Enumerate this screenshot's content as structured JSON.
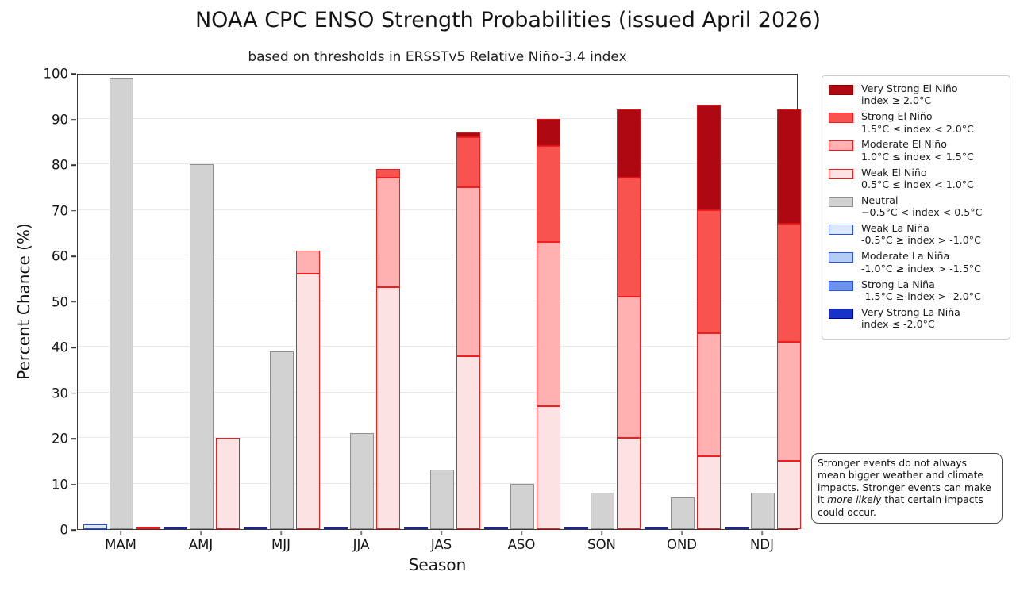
{
  "title": "NOAA CPC ENSO Strength Probabilities (issued April 2026)",
  "subtitle": "based on thresholds in ERSSTv5 Relative Niño-3.4 index",
  "axes": {
    "ylabel": "Percent Chance (%)",
    "xlabel": "Season",
    "yticks": [
      0,
      10,
      20,
      30,
      40,
      50,
      60,
      70,
      80,
      90,
      100
    ]
  },
  "chart_data": {
    "type": "bar",
    "stacked": true,
    "categories": [
      "MAM",
      "AMJ",
      "MJJ",
      "JJA",
      "JAS",
      "ASO",
      "SON",
      "OND",
      "NDJ"
    ],
    "ylim": [
      0,
      100
    ],
    "grid": true,
    "legend_position": "right",
    "groups_per_category": [
      "la_nina",
      "neutral",
      "el_nino"
    ],
    "series": [
      {
        "name": "Very Strong El Niño",
        "group": "el_nino",
        "order": 3,
        "values": [
          0,
          0,
          0,
          0,
          1,
          6,
          15,
          23,
          25
        ],
        "fill": "#ae0912",
        "edge": "#e01414"
      },
      {
        "name": "Strong El Niño",
        "group": "el_nino",
        "order": 2,
        "values": [
          0,
          0,
          0,
          2,
          11,
          21,
          26,
          27,
          26
        ],
        "fill": "#f8534f",
        "edge": "#f01e1e"
      },
      {
        "name": "Moderate El Niño",
        "group": "el_nino",
        "order": 1,
        "values": [
          0,
          0,
          5,
          24,
          37,
          36,
          31,
          27,
          26
        ],
        "fill": "#ffb1b1",
        "edge": "#f01e1e"
      },
      {
        "name": "Weak El Niño",
        "group": "el_nino",
        "order": 0,
        "values": [
          0,
          20,
          56,
          53,
          38,
          27,
          20,
          16,
          15
        ],
        "fill": "#fde2e4",
        "edge": "#f01e1e"
      },
      {
        "name": "Neutral",
        "group": "neutral",
        "order": 0,
        "values": [
          99,
          80,
          39,
          21,
          13,
          10,
          8,
          7,
          8
        ],
        "fill": "#d2d2d2",
        "edge": "#8f8f8f"
      },
      {
        "name": "Weak La Niña",
        "group": "la_nina",
        "order": 0,
        "values": [
          1,
          0,
          0,
          0,
          0,
          0,
          0,
          0,
          0
        ],
        "fill": "#dbe8fc",
        "edge": "#2a52e0"
      },
      {
        "name": "Moderate La Niña",
        "group": "la_nina",
        "order": 1,
        "values": [
          0,
          0,
          0,
          0,
          0,
          0,
          0,
          0,
          0
        ],
        "fill": "#b4ccf6",
        "edge": "#2a52e0"
      },
      {
        "name": "Strong La Niña",
        "group": "la_nina",
        "order": 2,
        "values": [
          0,
          0,
          0,
          0,
          0,
          0,
          0,
          0,
          0
        ],
        "fill": "#6e93ee",
        "edge": "#2a52e0"
      },
      {
        "name": "Very Strong La Niña",
        "group": "la_nina",
        "order": 3,
        "values": [
          0,
          0,
          0,
          0,
          0,
          0,
          0,
          0,
          0
        ],
        "fill": "#1633c8",
        "edge": "#00008b"
      }
    ],
    "zero_line_colors": {
      "la_nina": "#1f2490",
      "el_nino": "#f01414"
    },
    "el_nino_stack_tops": [
      0,
      20,
      61,
      79,
      87,
      90,
      92,
      93,
      92
    ]
  },
  "legend": {
    "items": [
      {
        "label": "Very Strong El Niño",
        "sublabel": "index ≥ 2.0°C",
        "fill": "#ae0912",
        "edge": "#8b0000"
      },
      {
        "label": "Strong El Niño",
        "sublabel": "1.5°C ≤ index < 2.0°C",
        "fill": "#f8534f",
        "edge": "#f01e1e"
      },
      {
        "label": "Moderate El Niño",
        "sublabel": "1.0°C ≤ index < 1.5°C",
        "fill": "#ffb1b1",
        "edge": "#f01e1e"
      },
      {
        "label": "Weak El Niño",
        "sublabel": "0.5°C ≤ index < 1.0°C",
        "fill": "#fde2e4",
        "edge": "#f01e1e"
      },
      {
        "label": "Neutral",
        "sublabel": "−0.5°C < index < 0.5°C",
        "fill": "#d2d2d2",
        "edge": "#8f8f8f"
      },
      {
        "label": "Weak La Niña",
        "sublabel": "-0.5°C ≥ index > -1.0°C",
        "fill": "#dbe8fc",
        "edge": "#2a52e0"
      },
      {
        "label": "Moderate La Niña",
        "sublabel": "-1.0°C ≥ index > -1.5°C",
        "fill": "#b4ccf6",
        "edge": "#2a52e0"
      },
      {
        "label": "Strong La Niña",
        "sublabel": "-1.5°C ≥ index > -2.0°C",
        "fill": "#6e93ee",
        "edge": "#2a52e0"
      },
      {
        "label": "Very Strong La Niña",
        "sublabel": "index ≤ -2.0°C",
        "fill": "#1633c8",
        "edge": "#00008b"
      }
    ]
  },
  "note": {
    "text_before": "Stronger events do not always mean bigger weather and climate impacts. Stronger events can make it ",
    "italic": "more likely",
    "text_after": " that certain impacts could occur."
  }
}
